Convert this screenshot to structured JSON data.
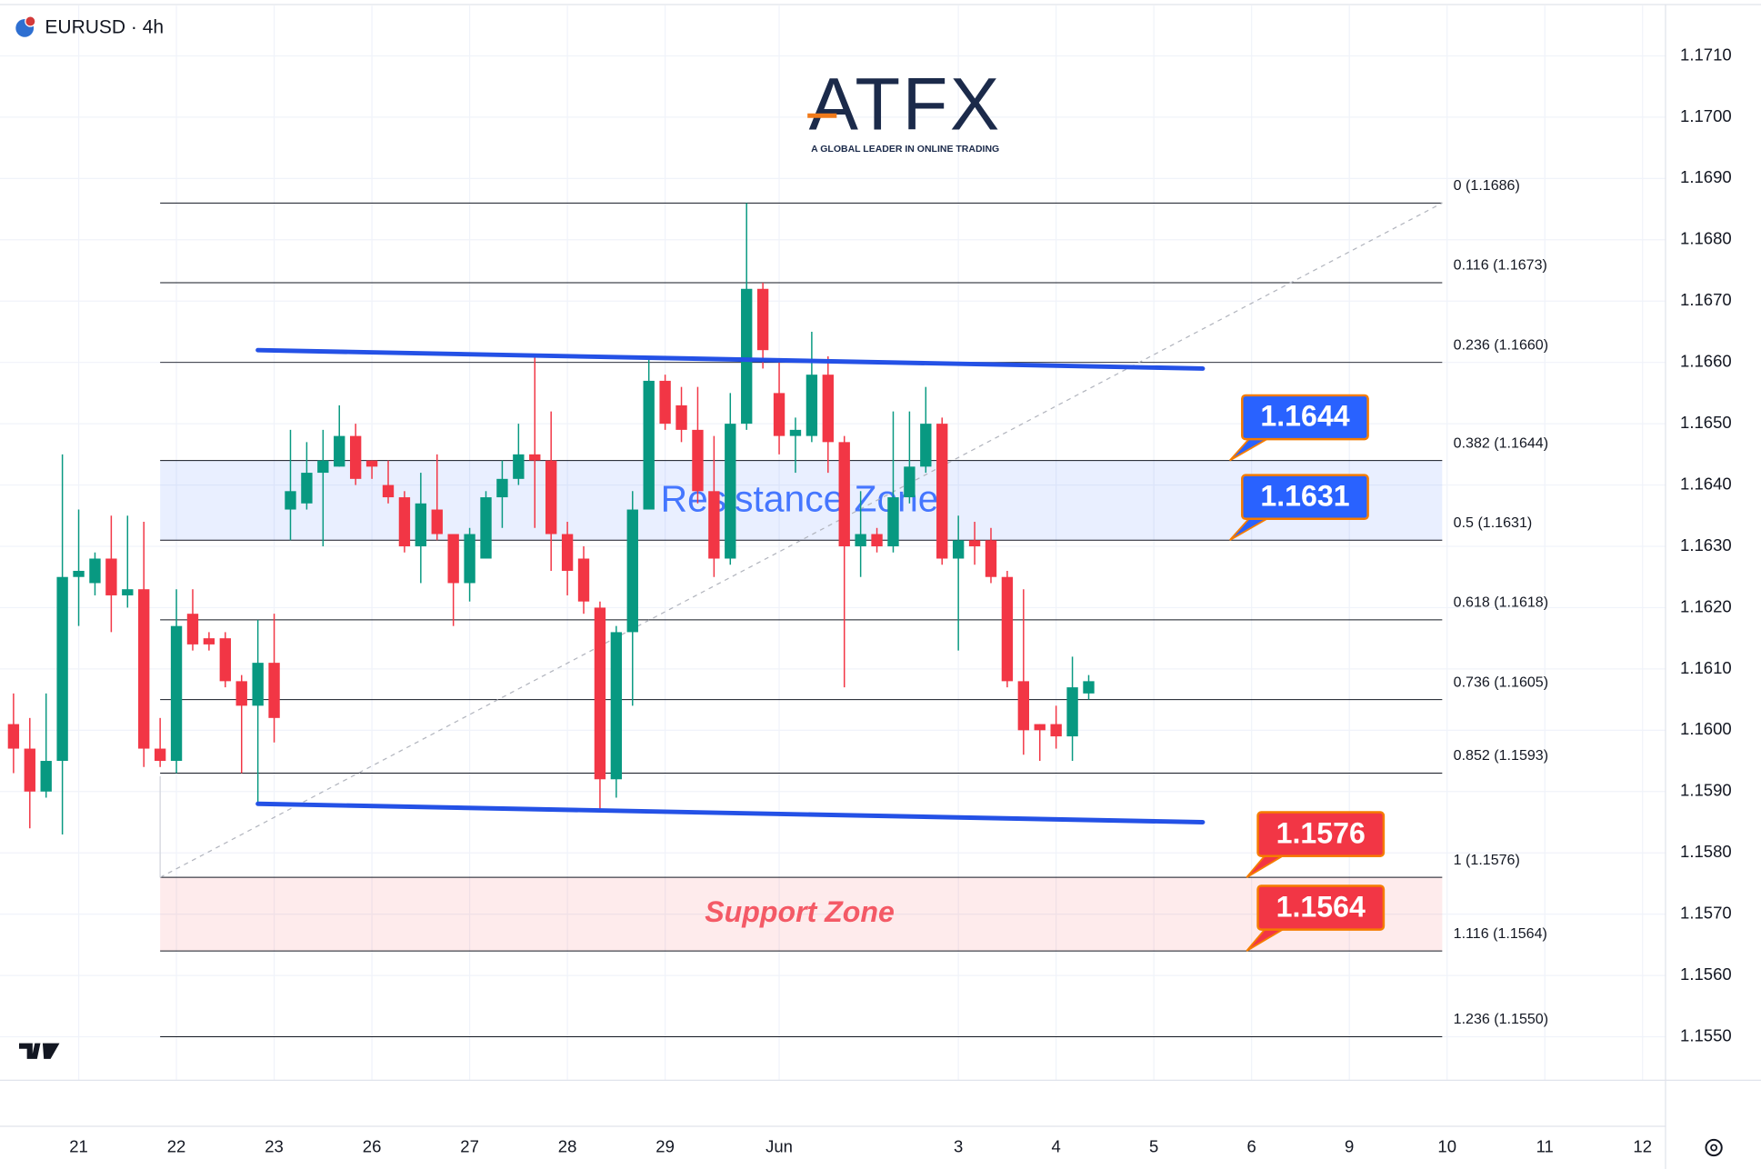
{
  "chart_data": {
    "type": "candlestick",
    "title": "EURUSD · 4h",
    "logo": {
      "text": "ATFX",
      "tagline": "A GLOBAL LEADER IN ONLINE TRADING"
    },
    "up_color": "#089981",
    "down_color": "#f23645",
    "x": [
      0,
      1,
      2,
      3,
      4,
      5,
      6,
      7,
      8,
      9,
      10,
      11,
      12,
      13,
      14,
      15,
      16,
      17,
      18,
      19,
      20,
      21,
      22,
      23,
      24,
      25,
      26,
      27,
      28,
      29,
      30,
      31,
      32,
      33,
      34,
      35,
      36,
      37,
      38,
      39,
      40,
      41,
      42,
      43,
      44,
      45,
      46,
      47,
      48,
      49,
      50,
      51,
      52,
      53,
      54,
      55,
      56,
      57,
      58,
      59,
      60,
      61,
      62,
      63,
      64,
      65,
      66
    ],
    "open": [
      1.1601,
      1.1597,
      1.159,
      1.1595,
      1.1625,
      1.1624,
      1.1628,
      1.1622,
      1.1623,
      1.1597,
      1.1595,
      1.1619,
      1.1615,
      1.1615,
      1.1608,
      1.1604,
      1.1611,
      1.1636,
      1.1637,
      1.1642,
      1.1643,
      1.1648,
      1.1644,
      1.164,
      1.1638,
      1.163,
      1.1636,
      1.1632,
      1.1624,
      1.1628,
      1.1638,
      1.1641,
      1.1645,
      1.1644,
      1.1632,
      1.1628,
      1.162,
      1.1592,
      1.1616,
      1.1636,
      1.1657,
      1.1653,
      1.1649,
      1.1639,
      1.1628,
      1.165,
      1.1672,
      1.1655,
      1.1648,
      1.1648,
      1.1658,
      1.1647,
      1.163,
      1.1632,
      1.163,
      1.1638,
      1.1643,
      1.165,
      1.1628,
      1.1631,
      1.1631,
      1.1625,
      1.1608,
      1.1601,
      1.1601,
      1.1599,
      1.1606
    ],
    "high": [
      1.1606,
      1.1602,
      1.1606,
      1.1645,
      1.1636,
      1.1629,
      1.1635,
      1.1635,
      1.1634,
      1.1602,
      1.1623,
      1.1623,
      1.1616,
      1.1616,
      1.1609,
      1.1618,
      1.1619,
      1.1649,
      1.1647,
      1.1649,
      1.1653,
      1.165,
      1.1644,
      1.1644,
      1.1639,
      1.1642,
      1.1645,
      1.1632,
      1.1633,
      1.1639,
      1.1644,
      1.165,
      1.1661,
      1.1652,
      1.1634,
      1.163,
      1.1621,
      1.1617,
      1.1639,
      1.1661,
      1.1658,
      1.1656,
      1.1656,
      1.1648,
      1.1655,
      1.1686,
      1.1673,
      1.166,
      1.1651,
      1.1665,
      1.1661,
      1.1648,
      1.1639,
      1.1633,
      1.1652,
      1.1652,
      1.1656,
      1.1651,
      1.1635,
      1.1634,
      1.1633,
      1.1626,
      1.1623,
      1.1601,
      1.1604,
      1.1612,
      1.1609
    ],
    "low": [
      1.1593,
      1.1584,
      1.1589,
      1.1583,
      1.1617,
      1.1622,
      1.1616,
      1.162,
      1.1594,
      1.1594,
      1.1593,
      1.1613,
      1.1613,
      1.1607,
      1.1593,
      1.1588,
      1.1598,
      1.1631,
      1.1636,
      1.163,
      1.1643,
      1.164,
      1.1641,
      1.1637,
      1.1629,
      1.1624,
      1.1631,
      1.1617,
      1.1621,
      1.1628,
      1.1633,
      1.164,
      1.1633,
      1.1626,
      1.1622,
      1.1619,
      1.1587,
      1.1589,
      1.1604,
      1.1636,
      1.1649,
      1.1647,
      1.1637,
      1.1625,
      1.1627,
      1.1649,
      1.1659,
      1.1645,
      1.1642,
      1.1647,
      1.1642,
      1.1607,
      1.1625,
      1.1629,
      1.1629,
      1.1637,
      1.1642,
      1.1627,
      1.1613,
      1.1627,
      1.1624,
      1.1607,
      1.1596,
      1.1595,
      1.1597,
      1.1595,
      1.1605
    ],
    "close": [
      1.1597,
      1.159,
      1.1595,
      1.1625,
      1.1626,
      1.1628,
      1.1622,
      1.1623,
      1.1597,
      1.1595,
      1.1617,
      1.1614,
      1.1614,
      1.1608,
      1.1604,
      1.1611,
      1.1602,
      1.1639,
      1.1642,
      1.1644,
      1.1648,
      1.1641,
      1.1643,
      1.1638,
      1.163,
      1.1637,
      1.1632,
      1.1624,
      1.1632,
      1.1638,
      1.1641,
      1.1645,
      1.1644,
      1.1632,
      1.1626,
      1.1621,
      1.1592,
      1.1616,
      1.1636,
      1.1657,
      1.165,
      1.1649,
      1.1639,
      1.1628,
      1.165,
      1.1672,
      1.1662,
      1.1648,
      1.1649,
      1.1658,
      1.1647,
      1.163,
      1.1632,
      1.163,
      1.1638,
      1.1643,
      1.165,
      1.1628,
      1.1631,
      1.163,
      1.1625,
      1.1608,
      1.16,
      1.16,
      1.1599,
      1.1607,
      1.1608
    ],
    "xlim": [
      -0.83,
      101.41
    ],
    "xticks": [
      {
        "value": 4,
        "label": "21"
      },
      {
        "value": 10,
        "label": "22"
      },
      {
        "value": 16,
        "label": "23"
      },
      {
        "value": 22,
        "label": "26"
      },
      {
        "value": 28,
        "label": "27"
      },
      {
        "value": 34,
        "label": "28"
      },
      {
        "value": 40,
        "label": "29"
      },
      {
        "value": 47,
        "label": "Jun"
      },
      {
        "value": 58,
        "label": "3"
      },
      {
        "value": 64,
        "label": "4"
      },
      {
        "value": 70,
        "label": "5"
      },
      {
        "value": 76,
        "label": "6"
      },
      {
        "value": 82,
        "label": "9"
      },
      {
        "value": 88,
        "label": "10"
      },
      {
        "value": 94,
        "label": "11"
      },
      {
        "value": 100,
        "label": "12"
      }
    ],
    "ylim": [
      1.15429,
      1.17182
    ],
    "yticks": [
      {
        "value": 1.171,
        "label": "1.1710"
      },
      {
        "value": 1.17,
        "label": "1.1700"
      },
      {
        "value": 1.169,
        "label": "1.1690"
      },
      {
        "value": 1.168,
        "label": "1.1680"
      },
      {
        "value": 1.167,
        "label": "1.1670"
      },
      {
        "value": 1.166,
        "label": "1.1660"
      },
      {
        "value": 1.165,
        "label": "1.1650"
      },
      {
        "value": 1.164,
        "label": "1.1640"
      },
      {
        "value": 1.163,
        "label": "1.1630"
      },
      {
        "value": 1.162,
        "label": "1.1620"
      },
      {
        "value": 1.161,
        "label": "1.1610"
      },
      {
        "value": 1.16,
        "label": "1.1600"
      },
      {
        "value": 1.159,
        "label": "1.1590"
      },
      {
        "value": 1.158,
        "label": "1.1580"
      },
      {
        "value": 1.157,
        "label": "1.1570"
      },
      {
        "value": 1.156,
        "label": "1.1560"
      },
      {
        "value": 1.155,
        "label": "1.1550"
      }
    ],
    "grid": true,
    "fib_anchor": {
      "x": [
        9,
        87.7
      ],
      "y": [
        1.1576,
        1.1686
      ]
    },
    "fib_levels": [
      {
        "value": 1.1686,
        "label": "0 (1.1686)"
      },
      {
        "value": 1.1673,
        "label": "0.116 (1.1673)"
      },
      {
        "value": 1.166,
        "label": "0.236 (1.1660)"
      },
      {
        "value": 1.1644,
        "label": "0.382 (1.1644)"
      },
      {
        "value": 1.1631,
        "label": "0.5 (1.1631)"
      },
      {
        "value": 1.1618,
        "label": "0.618 (1.1618)"
      },
      {
        "value": 1.1605,
        "label": "0.736 (1.1605)"
      },
      {
        "value": 1.1593,
        "label": "0.852 (1.1593)"
      },
      {
        "value": 1.1576,
        "label": "1 (1.1576)"
      },
      {
        "value": 1.1564,
        "label": "1.116 (1.1564)"
      },
      {
        "value": 1.155,
        "label": "1.236 (1.1550)"
      }
    ],
    "zones": [
      {
        "label": "Resistance Zone",
        "low": 1.1631,
        "high": 1.1644,
        "color": "#2962ff"
      },
      {
        "label": "Support Zone",
        "low": 1.1564,
        "high": 1.1576,
        "color": "#f23645"
      }
    ],
    "trend_lines": [
      {
        "x": [
          15,
          73
        ],
        "y": [
          1.1662,
          1.1659
        ],
        "color": "#2451e6"
      },
      {
        "x": [
          15,
          73
        ],
        "y": [
          1.1588,
          1.1585
        ],
        "color": "#2451e6"
      }
    ],
    "price_tags": [
      {
        "value": 1.1644,
        "color": "#2962ff"
      },
      {
        "value": 1.1631,
        "color": "#2962ff"
      },
      {
        "value": 1.1576,
        "color": "#f23645"
      },
      {
        "value": 1.1564,
        "color": "#f23645"
      }
    ]
  }
}
